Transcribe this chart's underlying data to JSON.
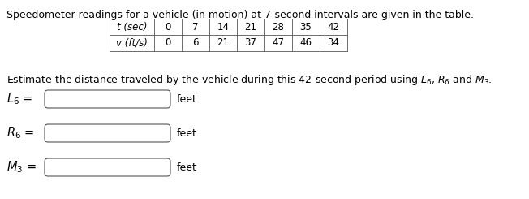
{
  "title_line": "Speedometer readings for a vehicle (in motion) at 7-second intervals are given in the table.",
  "table_headers": [
    "t (sec)",
    "0",
    "7",
    "14",
    "21",
    "28",
    "35",
    "42"
  ],
  "table_row2_label": "v (ft/s)",
  "table_row2_vals": [
    "0",
    "6",
    "21",
    "37",
    "47",
    "46",
    "34"
  ],
  "estimate_line1": "Estimate the distance traveled by the vehicle during this 42-second period using ",
  "estimate_line2": " and ",
  "label_L": "$L_6$",
  "label_R": "$R_6$",
  "label_M": "$M_3$",
  "estimate_end": ".",
  "unit": "feet",
  "bg_color": "#ffffff",
  "text_color": "#000000",
  "box_color": "#555555",
  "title_fontsize": 9.0,
  "table_fontsize": 8.5,
  "body_fontsize": 9.0,
  "label_fontsize": 10.5
}
